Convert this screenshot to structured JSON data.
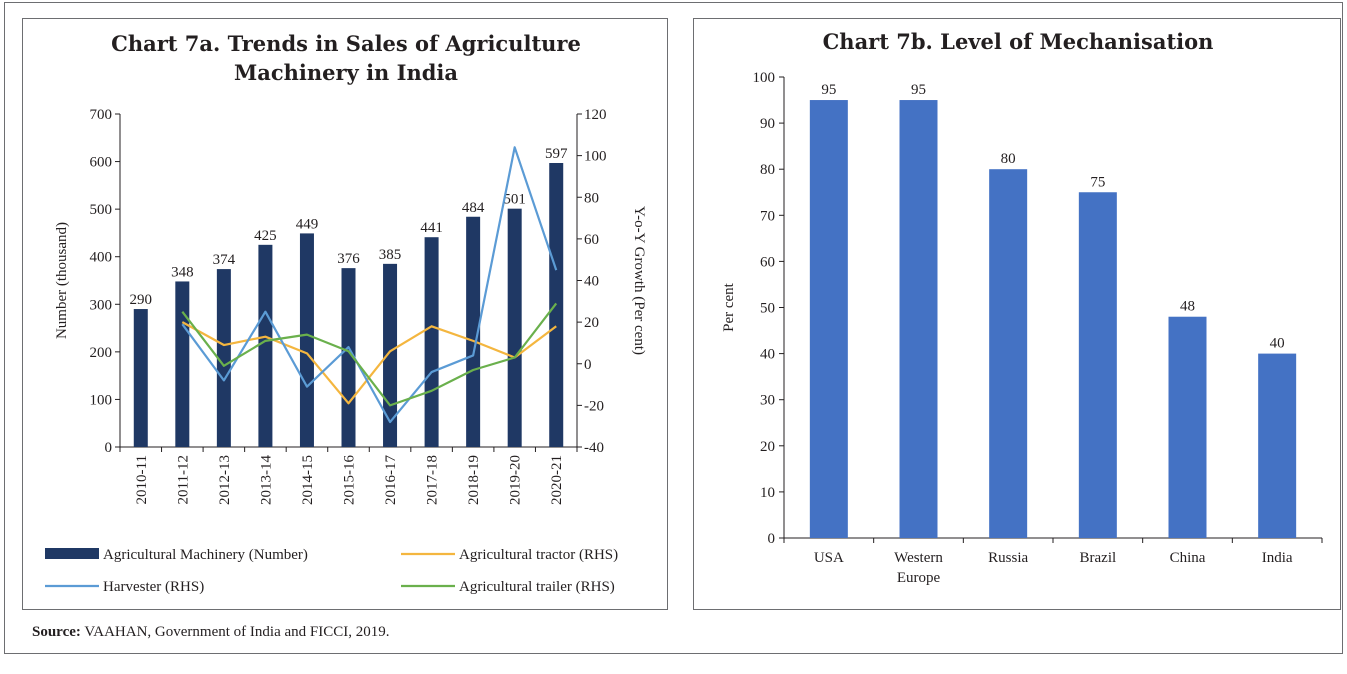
{
  "source": {
    "label": "Source:",
    "text": " VAAHAN, Government of India and FICCI, 2019."
  },
  "chart_data": [
    {
      "type": "bar",
      "title_line1": "Chart 7a. Trends in Sales of Agriculture",
      "title_line2": "Machinery in India",
      "ylabel": "Number (thousand)",
      "y2label": "Y-o-Y Growth (Per cent)",
      "ylim": [
        0,
        700
      ],
      "y2lim": [
        -40,
        120
      ],
      "yticks": [
        "0",
        "100",
        "200",
        "300",
        "400",
        "500",
        "600",
        "700"
      ],
      "y2ticks": [
        "-40",
        "-20",
        "0",
        "20",
        "40",
        "60",
        "80",
        "100",
        "120"
      ],
      "categories": [
        "2010-11",
        "2011-12",
        "2012-13",
        "2013-14",
        "2014-15",
        "2015-16",
        "2016-17",
        "2017-18",
        "2018-19",
        "2019-20",
        "2020-21"
      ],
      "bar_series": {
        "name": "Agricultural Machinery (Number)",
        "color": "#1f3864",
        "values": [
          290,
          348,
          374,
          425,
          449,
          376,
          385,
          441,
          484,
          501,
          597
        ]
      },
      "line_series": [
        {
          "name": "Agricultural tractor (RHS)",
          "color": "#f4b63f",
          "values": [
            null,
            20,
            9,
            13,
            5,
            -19,
            6,
            18,
            11,
            3,
            18
          ]
        },
        {
          "name": "Harvester (RHS)",
          "color": "#5b9bd5",
          "values": [
            null,
            19,
            -8,
            25,
            -11,
            8,
            -28,
            -4,
            4,
            104,
            45
          ]
        },
        {
          "name": "Agricultural trailer  (RHS)",
          "color": "#6ab04c",
          "values": [
            null,
            25,
            -1,
            11,
            14,
            6,
            -20,
            -13,
            -3,
            3,
            29
          ]
        }
      ]
    },
    {
      "type": "bar",
      "title": "Chart 7b. Level of Mechanisation",
      "ylabel": "Per cent",
      "ylim": [
        0,
        100
      ],
      "yticks": [
        "0",
        "10",
        "20",
        "30",
        "40",
        "50",
        "60",
        "70",
        "80",
        "90",
        "100"
      ],
      "categories": [
        [
          "USA"
        ],
        [
          "Western",
          "Europe"
        ],
        [
          "Russia"
        ],
        [
          "Brazil"
        ],
        [
          "China"
        ],
        [
          "India"
        ]
      ],
      "color": "#4472c4",
      "values": [
        95,
        95,
        80,
        75,
        48,
        40
      ]
    }
  ]
}
